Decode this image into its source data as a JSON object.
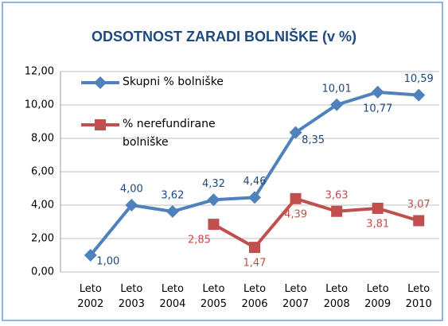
{
  "chart_data": {
    "type": "line",
    "title": "ODSOTNOST ZARADI BOLNIŠKE (v %)",
    "categories": [
      "Leto 2002",
      "Leto 2003",
      "Leto 2004",
      "Leto 2005",
      "Leto 2006",
      "Leto 2007",
      "Leto 2008",
      "Leto 2009",
      "Leto 2010"
    ],
    "series": [
      {
        "name": "Skupni % bolniške",
        "color": "#4f81bd",
        "marker": "diamond",
        "label_color": "#1f497d",
        "values": [
          1.0,
          4.0,
          3.62,
          4.32,
          4.46,
          8.35,
          10.01,
          10.77,
          10.59
        ],
        "value_labels": [
          "1,00",
          "4,00",
          "3,62",
          "4,32",
          "4,46",
          "8,35",
          "10,01",
          "10,77",
          "10,59"
        ]
      },
      {
        "name": "% nerefundirane bolniške",
        "color": "#c0504d",
        "marker": "square",
        "label_color": "#c0504d",
        "values": [
          null,
          null,
          null,
          2.85,
          1.47,
          4.39,
          3.63,
          3.81,
          3.07
        ],
        "value_labels": [
          null,
          null,
          null,
          "2,85",
          "1,47",
          "4,39",
          "3,63",
          "3,81",
          "3,07"
        ]
      }
    ],
    "ylim": [
      0,
      12
    ],
    "yticks": [
      {
        "value": 0,
        "label": "0,00"
      },
      {
        "value": 2,
        "label": "2,00"
      },
      {
        "value": 4,
        "label": "4,00"
      },
      {
        "value": 6,
        "label": "6,00"
      },
      {
        "value": 8,
        "label": "8,00"
      },
      {
        "value": 10,
        "label": "10,00"
      },
      {
        "value": 12,
        "label": "12,00"
      }
    ],
    "grid": true,
    "legend": "upper left"
  }
}
